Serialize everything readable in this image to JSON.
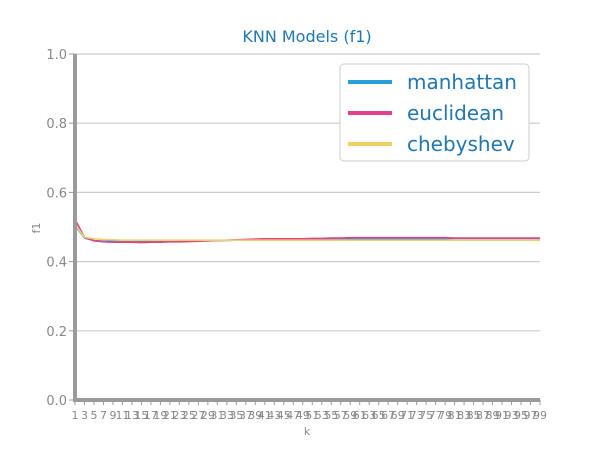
{
  "chart_data": {
    "type": "line",
    "title": "KNN Models (f1)",
    "xlabel": "k",
    "ylabel": "f1",
    "xlim": [
      1,
      99
    ],
    "ylim": [
      0,
      1
    ],
    "yticks": [
      0.0,
      0.2,
      0.4,
      0.6,
      0.8,
      1.0
    ],
    "x": [
      1,
      3,
      5,
      7,
      9,
      11,
      13,
      15,
      17,
      19,
      21,
      23,
      25,
      27,
      29,
      31,
      33,
      35,
      37,
      39,
      41,
      43,
      45,
      47,
      49,
      51,
      53,
      55,
      57,
      59,
      61,
      63,
      65,
      67,
      69,
      71,
      73,
      75,
      77,
      79,
      81,
      83,
      85,
      87,
      89,
      91,
      93,
      95,
      97,
      99
    ],
    "xtick_labels": [
      "1",
      "3",
      "5",
      "7",
      "9",
      "11",
      "13",
      "15",
      "17",
      "19",
      "21",
      "23",
      "25",
      "27",
      "29",
      "31",
      "33",
      "35",
      "37",
      "39",
      "41",
      "43",
      "45",
      "47",
      "49",
      "51",
      "53",
      "55",
      "57",
      "59",
      "61",
      "63",
      "65",
      "67",
      "69",
      "71",
      "73",
      "75",
      "77",
      "79",
      "81",
      "83",
      "85",
      "87",
      "89",
      "91",
      "93",
      "95",
      "97",
      "99"
    ],
    "grid": "horizontal",
    "legend": "top-right",
    "series": [
      {
        "name": "manhattan",
        "color": "#2a9fd6",
        "values": [
          0.505,
          0.468,
          0.461,
          0.459,
          0.459,
          0.459,
          0.459,
          0.459,
          0.459,
          0.459,
          0.459,
          0.459,
          0.46,
          0.46,
          0.46,
          0.461,
          0.461,
          0.462,
          0.462,
          0.463,
          0.463,
          0.463,
          0.464,
          0.464,
          0.464,
          0.464,
          0.465,
          0.465,
          0.465,
          0.465,
          0.465,
          0.466,
          0.466,
          0.466,
          0.466,
          0.466,
          0.466,
          0.466,
          0.466,
          0.466,
          0.467,
          0.467,
          0.467,
          0.467,
          0.467,
          0.467,
          0.467,
          0.467,
          0.467,
          0.467
        ]
      },
      {
        "name": "euclidean",
        "color": "#e83e8c",
        "values": [
          0.522,
          0.47,
          0.46,
          0.457,
          0.456,
          0.456,
          0.456,
          0.455,
          0.456,
          0.456,
          0.457,
          0.457,
          0.458,
          0.459,
          0.46,
          0.461,
          0.462,
          0.463,
          0.464,
          0.465,
          0.466,
          0.466,
          0.466,
          0.466,
          0.466,
          0.467,
          0.467,
          0.468,
          0.468,
          0.469,
          0.469,
          0.469,
          0.469,
          0.469,
          0.469,
          0.469,
          0.469,
          0.469,
          0.469,
          0.469,
          0.468,
          0.468,
          0.468,
          0.468,
          0.468,
          0.468,
          0.468,
          0.468,
          0.468,
          0.468
        ]
      },
      {
        "name": "chebyshev",
        "color": "#f0d264",
        "values": [
          0.508,
          0.47,
          0.466,
          0.464,
          0.463,
          0.462,
          0.462,
          0.462,
          0.462,
          0.462,
          0.462,
          0.462,
          0.462,
          0.462,
          0.462,
          0.462,
          0.462,
          0.462,
          0.462,
          0.462,
          0.462,
          0.462,
          0.462,
          0.462,
          0.462,
          0.462,
          0.462,
          0.462,
          0.462,
          0.462,
          0.462,
          0.462,
          0.462,
          0.462,
          0.462,
          0.462,
          0.462,
          0.462,
          0.462,
          0.462,
          0.462,
          0.462,
          0.462,
          0.462,
          0.462,
          0.462,
          0.462,
          0.462,
          0.462,
          0.462
        ]
      }
    ]
  },
  "colors": {
    "title": "#1f77b4",
    "legend_text": "#1f77b4",
    "axis": "#9a9a9a",
    "grid": "#cccccc"
  }
}
